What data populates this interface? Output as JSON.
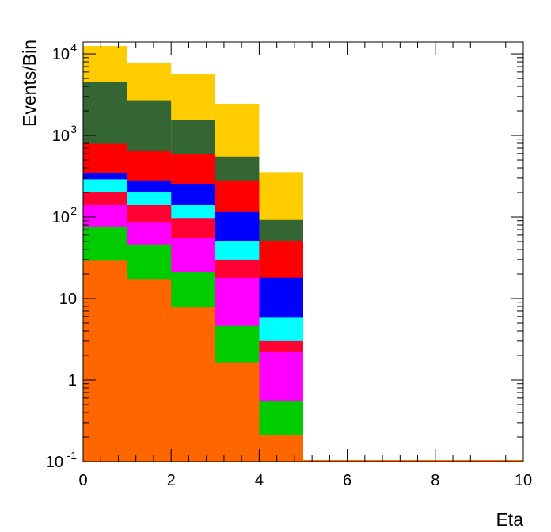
{
  "chart_data": {
    "type": "bar",
    "stacked": true,
    "xlabel": "Eta",
    "ylabel": "Events/Bin",
    "xlim": [
      0,
      10
    ],
    "ylim": [
      0.1,
      14000
    ],
    "y_scale": "log",
    "grid": false,
    "x_bin_edges": [
      0,
      1,
      2,
      3,
      4,
      5,
      6,
      7,
      8,
      9,
      10
    ],
    "x_ticks": [
      {
        "value": 0,
        "label": "0"
      },
      {
        "value": 2,
        "label": "2"
      },
      {
        "value": 4,
        "label": "4"
      },
      {
        "value": 6,
        "label": "6"
      },
      {
        "value": 8,
        "label": "8"
      },
      {
        "value": 10,
        "label": "10"
      }
    ],
    "y_ticks": [
      {
        "value": 0.1,
        "base": "10",
        "exp": "-1"
      },
      {
        "value": 1,
        "base": "1",
        "exp": ""
      },
      {
        "value": 10,
        "base": "10",
        "exp": ""
      },
      {
        "value": 100,
        "base": "10",
        "exp": "2"
      },
      {
        "value": 1000,
        "base": "10",
        "exp": "3"
      },
      {
        "value": 10000,
        "base": "10",
        "exp": "4"
      }
    ],
    "stack_top_values": [
      {
        "color": "#ffcc00",
        "values": [
          12500,
          7800,
          5700,
          2450,
          355,
          0,
          0,
          0,
          0,
          0
        ]
      },
      {
        "color": "#336633",
        "values": [
          4500,
          2700,
          1550,
          550,
          92,
          0,
          0,
          0,
          0,
          0
        ]
      },
      {
        "color": "#ff0000",
        "values": [
          790,
          640,
          590,
          275,
          50,
          0,
          0,
          0,
          0,
          0
        ]
      },
      {
        "color": "#0000ff",
        "values": [
          350,
          275,
          255,
          115,
          18,
          0,
          0,
          0,
          0,
          0
        ]
      },
      {
        "color": "#00ffff",
        "values": [
          290,
          200,
          140,
          50,
          5.8,
          0,
          0,
          0,
          0,
          0
        ]
      },
      {
        "color": "#ff0033",
        "values": [
          200,
          140,
          95,
          30,
          3.0,
          0,
          0,
          0,
          0,
          0
        ]
      },
      {
        "color": "#ff00ff",
        "values": [
          140,
          85,
          55,
          18,
          2.2,
          0,
          0,
          0,
          0,
          0
        ]
      },
      {
        "color": "#00cc00",
        "values": [
          75,
          46,
          21,
          4.6,
          0.55,
          0,
          0,
          0,
          0,
          0
        ]
      },
      {
        "color": "#ff6600",
        "values": [
          29,
          17,
          7.8,
          1.65,
          0.21,
          0,
          0,
          0,
          0,
          0
        ]
      }
    ]
  }
}
